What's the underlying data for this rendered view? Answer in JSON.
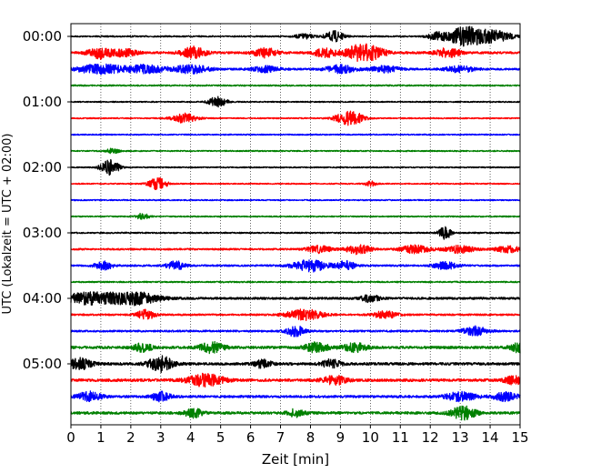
{
  "chart_data": {
    "type": "line",
    "title": "",
    "xlabel": "Zeit  [min]",
    "ylabel": "UTC (Lokalzeit = UTC + 02:00)",
    "xlim": [
      0,
      15
    ],
    "x_ticks": [
      0,
      1,
      2,
      3,
      4,
      5,
      6,
      7,
      8,
      9,
      10,
      11,
      12,
      13,
      14,
      15
    ],
    "x_grid": "dotted vertical lines at every minute",
    "y_tick_labels": [
      "00:00",
      "01:00",
      "02:00",
      "03:00",
      "04:00",
      "05:00"
    ],
    "rows_per_hour": 4,
    "minutes_per_row": 15,
    "color_cycle": [
      "#000000",
      "#ff0000",
      "#0000ff",
      "#008000"
    ],
    "series": [
      {
        "start": "00:00",
        "color": "#000000",
        "noise": 0.8,
        "events": [
          [
            7.8,
            0.8,
            0.3
          ],
          [
            8.8,
            1.8,
            0.3
          ],
          [
            12.2,
            1.0,
            0.3
          ],
          [
            13.0,
            2.0,
            0.6
          ],
          [
            13.5,
            1.8,
            0.6
          ],
          [
            14.3,
            1.6,
            0.5
          ]
        ]
      },
      {
        "start": "00:15",
        "color": "#ff0000",
        "noise": 1.3,
        "events": [
          [
            1.0,
            2.0,
            0.4
          ],
          [
            1.8,
            1.2,
            0.4
          ],
          [
            4.1,
            2.0,
            0.4
          ],
          [
            6.5,
            1.5,
            0.4
          ],
          [
            8.5,
            1.4,
            0.4
          ],
          [
            9.5,
            1.6,
            0.4
          ],
          [
            10.0,
            2.2,
            0.5
          ],
          [
            12.6,
            1.5,
            0.4
          ]
        ]
      },
      {
        "start": "00:30",
        "color": "#0000ff",
        "noise": 1.1,
        "events": [
          [
            1.0,
            1.6,
            0.8
          ],
          [
            2.5,
            1.3,
            0.6
          ],
          [
            4.0,
            1.4,
            0.6
          ],
          [
            6.5,
            1.0,
            0.5
          ],
          [
            9.0,
            1.3,
            0.5
          ],
          [
            10.5,
            1.0,
            0.5
          ],
          [
            13.0,
            1.0,
            0.5
          ]
        ]
      },
      {
        "start": "00:45",
        "color": "#008000",
        "noise": 0.8,
        "events": []
      },
      {
        "start": "01:00",
        "color": "#000000",
        "noise": 0.7,
        "events": [
          [
            4.9,
            1.8,
            0.3
          ]
        ]
      },
      {
        "start": "01:15",
        "color": "#ff0000",
        "noise": 0.7,
        "events": [
          [
            3.8,
            1.6,
            0.4
          ],
          [
            9.2,
            2.0,
            0.4
          ],
          [
            9.6,
            1.0,
            0.3
          ]
        ]
      },
      {
        "start": "01:30",
        "color": "#0000ff",
        "noise": 0.7,
        "events": []
      },
      {
        "start": "01:45",
        "color": "#008000",
        "noise": 0.7,
        "events": [
          [
            1.4,
            0.9,
            0.2
          ]
        ]
      },
      {
        "start": "02:00",
        "color": "#000000",
        "noise": 0.7,
        "events": [
          [
            1.3,
            2.6,
            0.3
          ]
        ]
      },
      {
        "start": "02:15",
        "color": "#ff0000",
        "noise": 0.7,
        "events": [
          [
            2.9,
            2.0,
            0.3
          ],
          [
            10.0,
            0.8,
            0.2
          ]
        ]
      },
      {
        "start": "02:30",
        "color": "#0000ff",
        "noise": 0.7,
        "events": []
      },
      {
        "start": "02:45",
        "color": "#008000",
        "noise": 0.7,
        "events": [
          [
            2.4,
            1.1,
            0.2
          ]
        ]
      },
      {
        "start": "03:00",
        "color": "#000000",
        "noise": 0.8,
        "events": [
          [
            12.5,
            2.2,
            0.2
          ]
        ]
      },
      {
        "start": "03:15",
        "color": "#ff0000",
        "noise": 1.0,
        "events": [
          [
            8.3,
            1.2,
            0.4
          ],
          [
            9.6,
            1.6,
            0.4
          ],
          [
            11.5,
            1.3,
            0.5
          ],
          [
            13.0,
            1.2,
            0.5
          ],
          [
            14.6,
            1.2,
            0.4
          ]
        ]
      },
      {
        "start": "03:30",
        "color": "#0000ff",
        "noise": 1.0,
        "events": [
          [
            1.1,
            1.4,
            0.3
          ],
          [
            3.5,
            1.5,
            0.3
          ],
          [
            8.0,
            2.0,
            0.6
          ],
          [
            9.2,
            1.6,
            0.3
          ],
          [
            12.5,
            1.2,
            0.4
          ]
        ]
      },
      {
        "start": "03:45",
        "color": "#008000",
        "noise": 0.8,
        "events": []
      },
      {
        "start": "04:00",
        "color": "#000000",
        "noise": 1.3,
        "events": [
          [
            0.3,
            1.4,
            0.6
          ],
          [
            1.0,
            1.2,
            0.6
          ],
          [
            2.1,
            2.2,
            0.8
          ],
          [
            10.0,
            1.2,
            0.3
          ]
        ]
      },
      {
        "start": "04:15",
        "color": "#ff0000",
        "noise": 1.0,
        "events": [
          [
            2.5,
            1.6,
            0.3
          ],
          [
            7.8,
            1.8,
            0.6
          ],
          [
            10.5,
            1.2,
            0.4
          ]
        ]
      },
      {
        "start": "04:30",
        "color": "#0000ff",
        "noise": 1.1,
        "events": [
          [
            7.5,
            1.8,
            0.3
          ],
          [
            13.5,
            1.6,
            0.4
          ]
        ]
      },
      {
        "start": "04:45",
        "color": "#008000",
        "noise": 1.5,
        "events": [
          [
            2.4,
            1.4,
            0.3
          ],
          [
            4.7,
            1.8,
            0.4
          ],
          [
            8.2,
            1.6,
            0.4
          ],
          [
            9.5,
            1.4,
            0.4
          ],
          [
            15.0,
            1.8,
            0.3
          ]
        ]
      },
      {
        "start": "05:00",
        "color": "#000000",
        "noise": 1.5,
        "events": [
          [
            0.3,
            1.8,
            0.4
          ],
          [
            3.0,
            2.6,
            0.4
          ],
          [
            6.4,
            1.3,
            0.3
          ],
          [
            8.7,
            1.4,
            0.3
          ]
        ]
      },
      {
        "start": "05:15",
        "color": "#ff0000",
        "noise": 1.6,
        "events": [
          [
            4.5,
            2.0,
            0.6
          ],
          [
            8.8,
            1.4,
            0.4
          ],
          [
            14.8,
            1.4,
            0.3
          ]
        ]
      },
      {
        "start": "05:30",
        "color": "#0000ff",
        "noise": 1.4,
        "events": [
          [
            0.6,
            1.6,
            0.4
          ],
          [
            3.0,
            1.6,
            0.3
          ],
          [
            13.0,
            1.4,
            0.5
          ],
          [
            14.5,
            1.4,
            0.4
          ]
        ]
      },
      {
        "start": "05:45",
        "color": "#008000",
        "noise": 1.5,
        "events": [
          [
            4.1,
            1.4,
            0.3
          ],
          [
            7.5,
            1.3,
            0.3
          ],
          [
            13.1,
            2.2,
            0.4
          ]
        ]
      }
    ]
  }
}
